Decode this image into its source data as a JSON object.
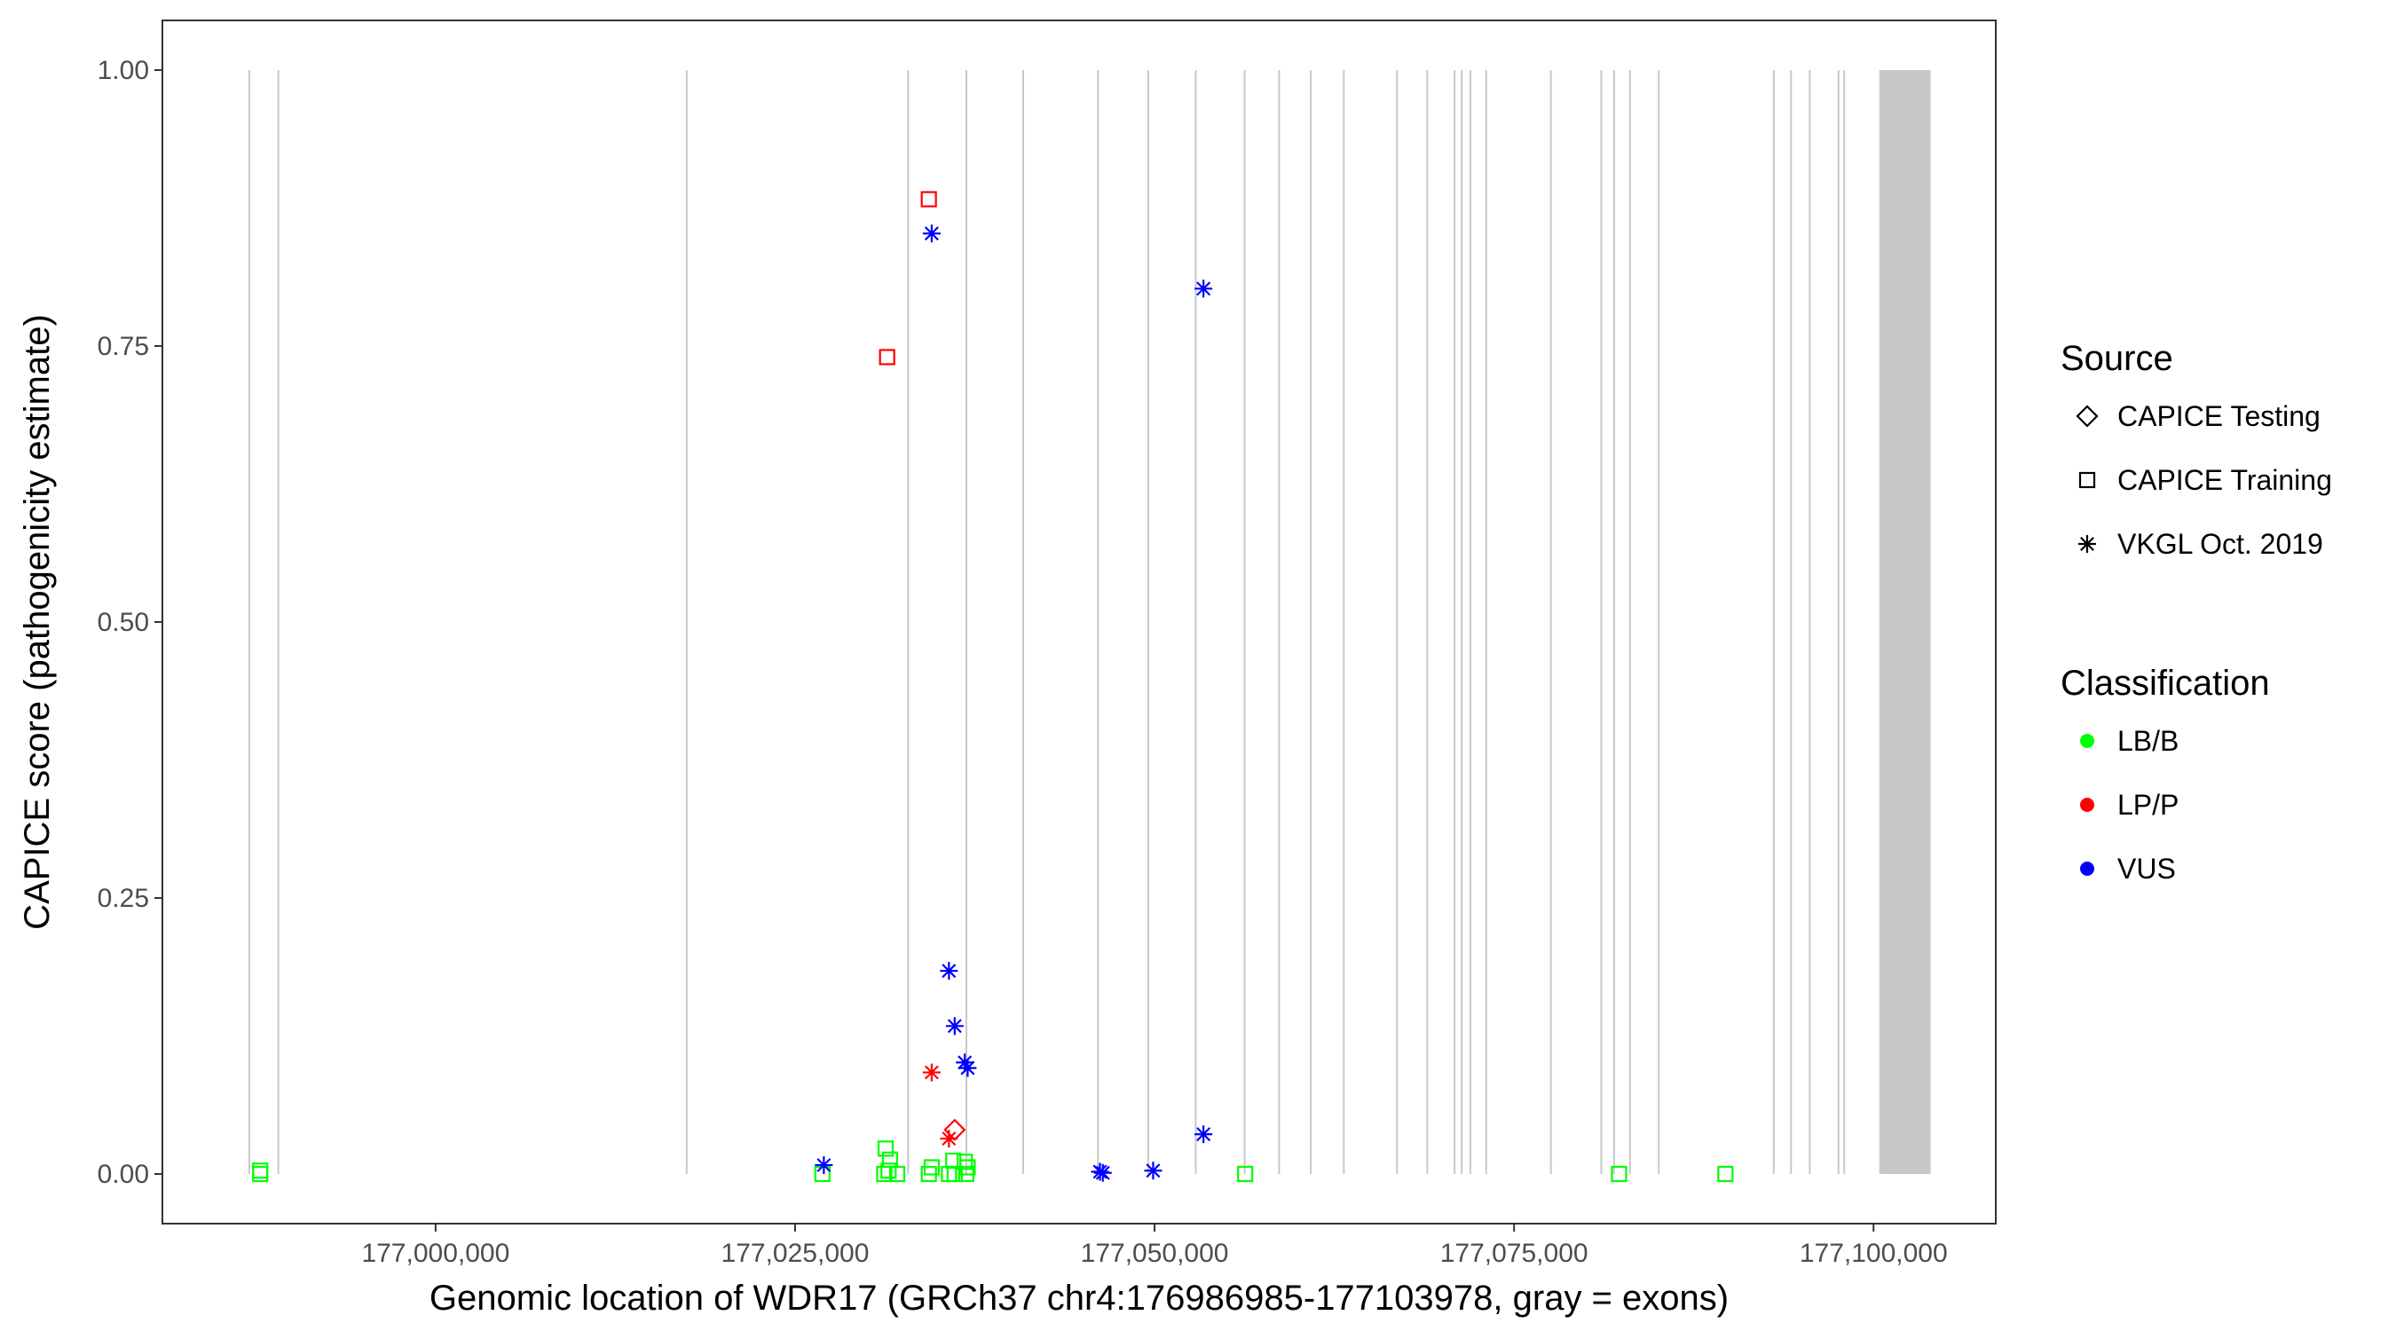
{
  "chart_data": {
    "type": "scatter",
    "title": "",
    "xlabel": "Genomic location of WDR17 (GRCh37 chr4:176986985-177103978, gray = exons)",
    "ylabel": "CAPICE score (pathogenicity estimate)",
    "xlim": [
      176981000,
      177108500
    ],
    "ylim": [
      -0.045,
      1.045
    ],
    "x_ticks": [
      177000000,
      177025000,
      177050000,
      177075000,
      177100000
    ],
    "x_tick_labels": [
      "177,000,000",
      "177,025,000",
      "177,050,000",
      "177,075,000",
      "177,100,000"
    ],
    "y_ticks": [
      0,
      0.25,
      0.5,
      0.75,
      1.0
    ],
    "y_tick_labels": [
      "0.00",
      "0.25",
      "0.50",
      "0.75",
      "1.00"
    ],
    "grid": false,
    "exons": [
      {
        "start": 176986985,
        "end": 176987100
      },
      {
        "start": 176989000,
        "end": 176989090
      },
      {
        "start": 177017400,
        "end": 177017480
      },
      {
        "start": 177032800,
        "end": 177032880
      },
      {
        "start": 177036850,
        "end": 177036960
      },
      {
        "start": 177040800,
        "end": 177040920
      },
      {
        "start": 177046000,
        "end": 177046120
      },
      {
        "start": 177049500,
        "end": 177049580
      },
      {
        "start": 177052800,
        "end": 177052880
      },
      {
        "start": 177056200,
        "end": 177056280
      },
      {
        "start": 177058600,
        "end": 177058680
      },
      {
        "start": 177060800,
        "end": 177060880
      },
      {
        "start": 177063100,
        "end": 177063180
      },
      {
        "start": 177066800,
        "end": 177066880
      },
      {
        "start": 177068900,
        "end": 177068990
      },
      {
        "start": 177070800,
        "end": 177070880
      },
      {
        "start": 177071300,
        "end": 177071380
      },
      {
        "start": 177071900,
        "end": 177071980
      },
      {
        "start": 177073000,
        "end": 177073080
      },
      {
        "start": 177077500,
        "end": 177077580
      },
      {
        "start": 177081000,
        "end": 177081090
      },
      {
        "start": 177081900,
        "end": 177081980
      },
      {
        "start": 177083000,
        "end": 177083080
      },
      {
        "start": 177085000,
        "end": 177085080
      },
      {
        "start": 177093000,
        "end": 177093100
      },
      {
        "start": 177094200,
        "end": 177094280
      },
      {
        "start": 177095500,
        "end": 177095580
      },
      {
        "start": 177097500,
        "end": 177097580
      },
      {
        "start": 177097900,
        "end": 177097980
      },
      {
        "start": 177100400,
        "end": 177103978
      }
    ],
    "series": [
      {
        "source": "CAPICE Training",
        "classification": "LB/B",
        "points": [
          [
            176987800,
            0.003
          ],
          [
            176987800,
            0.0
          ],
          [
            177026900,
            0.0
          ],
          [
            177031200,
            0.0
          ],
          [
            177031500,
            0.003
          ],
          [
            177031300,
            0.023
          ],
          [
            177031600,
            0.013
          ],
          [
            177032100,
            0.0
          ],
          [
            177034300,
            0.0
          ],
          [
            177034500,
            0.006
          ],
          [
            177035700,
            0.0
          ],
          [
            177036000,
            0.012
          ],
          [
            177036100,
            0.0
          ],
          [
            177036900,
            0.0
          ],
          [
            177037000,
            0.006
          ],
          [
            177036800,
            0.011
          ],
          [
            177056300,
            0.0
          ],
          [
            177082300,
            0.0
          ],
          [
            177089700,
            0.0
          ]
        ]
      },
      {
        "source": "CAPICE Training",
        "classification": "LP/P",
        "points": [
          [
            177034300,
            0.883
          ],
          [
            177031400,
            0.74
          ]
        ]
      },
      {
        "source": "CAPICE Testing",
        "classification": "LP/P",
        "points": [
          [
            177036100,
            0.04
          ]
        ]
      },
      {
        "source": "VKGL Oct. 2019",
        "classification": "LP/P",
        "points": [
          [
            177034500,
            0.092
          ],
          [
            177035700,
            0.032
          ]
        ]
      },
      {
        "source": "VKGL Oct. 2019",
        "classification": "VUS",
        "points": [
          [
            177034500,
            0.852
          ],
          [
            177053400,
            0.802
          ],
          [
            177035700,
            0.184
          ],
          [
            177036100,
            0.134
          ],
          [
            177036800,
            0.101
          ],
          [
            177037000,
            0.096
          ],
          [
            177027000,
            0.008
          ],
          [
            177046200,
            0.002
          ],
          [
            177046400,
            0.001
          ],
          [
            177049900,
            0.003
          ],
          [
            177053400,
            0.036
          ]
        ]
      }
    ],
    "legend_placement": "right",
    "legend": {
      "source_title": "Source",
      "source_items": [
        {
          "label": "CAPICE Testing",
          "shape": "diamond"
        },
        {
          "label": "CAPICE Training",
          "shape": "square"
        },
        {
          "label": "VKGL Oct. 2019",
          "shape": "asterisk"
        }
      ],
      "class_title": "Classification",
      "class_items": [
        {
          "label": "LB/B",
          "color": "#00ff00"
        },
        {
          "label": "LP/P",
          "color": "#ff0000"
        },
        {
          "label": "VUS",
          "color": "#0000ff"
        }
      ]
    },
    "colors": {
      "LB/B": "#00ff00",
      "LP/P": "#ff0000",
      "VUS": "#0000ff",
      "exon": "#c8c8c8"
    }
  }
}
